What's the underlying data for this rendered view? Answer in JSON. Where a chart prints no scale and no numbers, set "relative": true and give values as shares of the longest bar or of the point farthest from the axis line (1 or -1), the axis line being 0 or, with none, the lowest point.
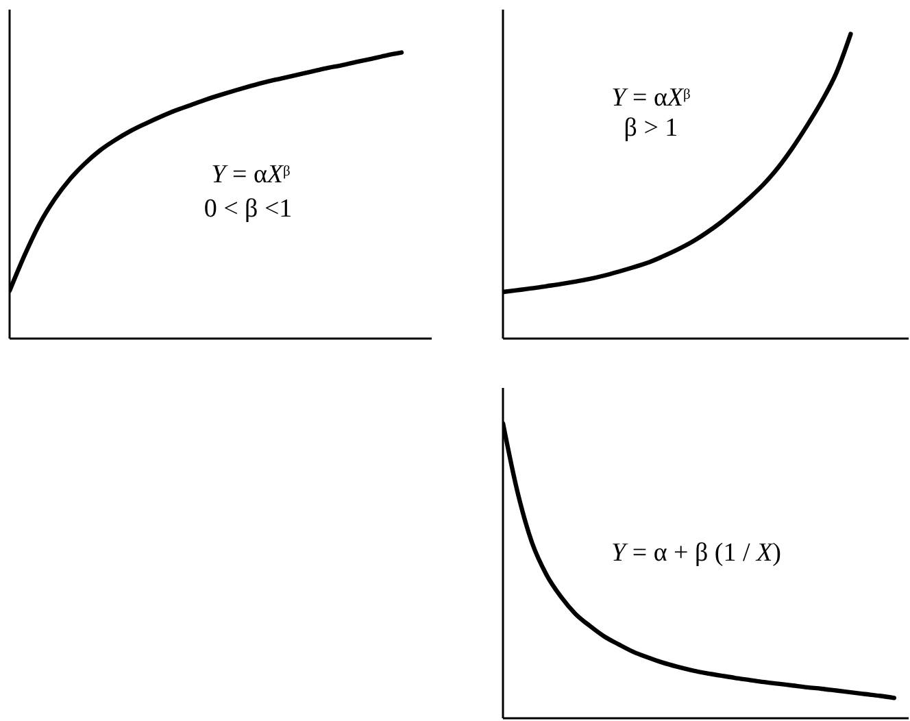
{
  "chart_data": [
    {
      "type": "line",
      "relative": true,
      "categories": [
        null,
        null,
        null,
        null,
        null,
        null,
        null,
        null,
        null,
        null,
        null,
        null,
        null,
        null,
        null,
        null,
        null,
        null,
        null,
        null,
        null,
        null,
        null,
        null,
        null,
        null,
        null,
        null,
        null
      ],
      "values": [
        0.167,
        0.292,
        0.402,
        0.488,
        0.557,
        0.612,
        0.658,
        0.694,
        0.725,
        0.751,
        0.775,
        0.797,
        0.816,
        0.835,
        0.852,
        0.868,
        0.883,
        0.897,
        0.909,
        0.921,
        0.933,
        0.945,
        0.955,
        0.967,
        0.978,
        0.99,
        1.0,
        null,
        null
      ],
      "color": "#000000",
      "annotations": [
        "Y = αX$^{β}$",
        "0 < β <1"
      ]
    },
    {
      "type": "line",
      "relative": true,
      "categories": [
        null,
        null,
        null,
        null,
        null,
        null,
        null,
        null,
        null,
        null,
        null,
        null,
        null,
        null,
        null,
        null,
        null,
        null,
        null,
        null,
        null,
        null,
        null,
        null,
        null,
        null,
        null,
        null,
        null
      ],
      "values": [
        0.153,
        0.159,
        0.165,
        0.172,
        0.179,
        0.187,
        0.196,
        0.207,
        0.22,
        0.234,
        0.249,
        0.269,
        0.291,
        0.316,
        0.346,
        0.38,
        0.419,
        0.461,
        0.507,
        0.562,
        0.627,
        0.7,
        0.779,
        0.871,
        1.0,
        null,
        null,
        null,
        null
      ],
      "color": "#000000",
      "annotations": [
        "Y = αX$^{β}$",
        "β > 1"
      ]
    },
    {
      "type": "line",
      "relative": true,
      "categories": [
        null,
        null,
        null,
        null,
        null,
        null,
        null,
        null,
        null,
        null,
        null,
        null,
        null,
        null,
        null,
        null,
        null,
        null,
        null,
        null,
        null,
        null,
        null,
        null,
        null,
        null,
        null,
        null,
        null
      ],
      "values": [
        1.0,
        0.768,
        0.596,
        0.487,
        0.412,
        0.354,
        0.313,
        0.277,
        0.25,
        0.225,
        0.206,
        0.189,
        0.175,
        0.163,
        0.153,
        0.145,
        0.137,
        0.13,
        0.123,
        0.117,
        0.111,
        0.105,
        0.1,
        0.094,
        0.088,
        0.082,
        0.076,
        0.069,
        null
      ],
      "color": "#000000",
      "annotations": [
        "Y = α + β (1 / X)"
      ]
    }
  ]
}
